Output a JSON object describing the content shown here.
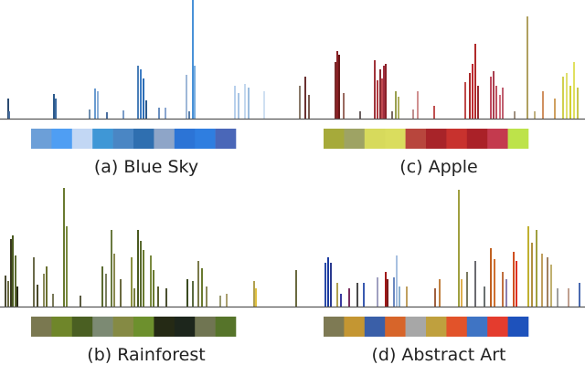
{
  "chart_data": [
    {
      "type": "bar",
      "title": "(a) Blue Sky",
      "ylim": [
        0,
        130
      ],
      "palette": [
        "#6c9fd8",
        "#4f9ef3",
        "#c2d7f4",
        "#3f97d6",
        "#4a86c4",
        "#2f6fb0",
        "#8ea5c8",
        "#2c74d6",
        "#2f7ee0",
        "#4a67b8"
      ],
      "bars": [
        {
          "x": 8,
          "y": 22,
          "c": "#2a4a70"
        },
        {
          "x": 9,
          "y": 8,
          "c": "#4a6fa0"
        },
        {
          "x": 58,
          "y": 27,
          "c": "#2d5a8c"
        },
        {
          "x": 60,
          "y": 22,
          "c": "#3a6aa0"
        },
        {
          "x": 97,
          "y": 10,
          "c": "#6f8fb0"
        },
        {
          "x": 103,
          "y": 33,
          "c": "#6a9bd0"
        },
        {
          "x": 106,
          "y": 30,
          "c": "#8eb0d8"
        },
        {
          "x": 116,
          "y": 7,
          "c": "#4a6fa0"
        },
        {
          "x": 134,
          "y": 9,
          "c": "#7a9cc8"
        },
        {
          "x": 150,
          "y": 58,
          "c": "#4a7fb8"
        },
        {
          "x": 153,
          "y": 54,
          "c": "#3e7dc4"
        },
        {
          "x": 156,
          "y": 44,
          "c": "#2d6db5"
        },
        {
          "x": 159,
          "y": 20,
          "c": "#2a5a90"
        },
        {
          "x": 173,
          "y": 12,
          "c": "#6a8fc0"
        },
        {
          "x": 180,
          "y": 12,
          "c": "#8aa6d0"
        },
        {
          "x": 203,
          "y": 48,
          "c": "#9fb8d8"
        },
        {
          "x": 206,
          "y": 8,
          "c": "#5a7ea8"
        },
        {
          "x": 210,
          "y": 130,
          "c": "#4a92d8"
        },
        {
          "x": 212,
          "y": 58,
          "c": "#7aaee0"
        },
        {
          "x": 256,
          "y": 36,
          "c": "#b8d0ec"
        },
        {
          "x": 260,
          "y": 28,
          "c": "#a8c4e4"
        },
        {
          "x": 267,
          "y": 38,
          "c": "#c4d8ee"
        },
        {
          "x": 271,
          "y": 34,
          "c": "#9ebede"
        },
        {
          "x": 288,
          "y": 30,
          "c": "#d0e0f2"
        }
      ]
    },
    {
      "type": "bar",
      "title": "(c) Apple",
      "ylim": [
        0,
        130
      ],
      "palette": [
        "#a6aa3a",
        "#9ea364",
        "#d7da5c",
        "#dadd5e",
        "#b8463d",
        "#a82429",
        "#c8322e",
        "#aa2128",
        "#c43a4e",
        "#bde34a"
      ],
      "bars": [
        {
          "x": 7,
          "y": 36,
          "c": "#8a7a6a"
        },
        {
          "x": 13,
          "y": 46,
          "c": "#6a3030"
        },
        {
          "x": 17,
          "y": 26,
          "c": "#7a5a50"
        },
        {
          "x": 46,
          "y": 62,
          "c": "#7a2a2a"
        },
        {
          "x": 48,
          "y": 74,
          "c": "#8a2024"
        },
        {
          "x": 50,
          "y": 70,
          "c": "#6a1818"
        },
        {
          "x": 55,
          "y": 28,
          "c": "#9a6a60"
        },
        {
          "x": 73,
          "y": 8,
          "c": "#6a6060"
        },
        {
          "x": 89,
          "y": 64,
          "c": "#a0343a"
        },
        {
          "x": 92,
          "y": 42,
          "c": "#b03a40"
        },
        {
          "x": 95,
          "y": 54,
          "c": "#8a2a30"
        },
        {
          "x": 97,
          "y": 44,
          "c": "#c04a50"
        },
        {
          "x": 99,
          "y": 58,
          "c": "#a03040"
        },
        {
          "x": 101,
          "y": 60,
          "c": "#8a2028"
        },
        {
          "x": 108,
          "y": 8,
          "c": "#7a6a60"
        },
        {
          "x": 112,
          "y": 30,
          "c": "#9aa050"
        },
        {
          "x": 115,
          "y": 24,
          "c": "#b0b060"
        },
        {
          "x": 131,
          "y": 10,
          "c": "#c09090"
        },
        {
          "x": 136,
          "y": 30,
          "c": "#d09090"
        },
        {
          "x": 154,
          "y": 14,
          "c": "#c05050"
        },
        {
          "x": 188,
          "y": 40,
          "c": "#c04a4a"
        },
        {
          "x": 193,
          "y": 50,
          "c": "#a82a2a"
        },
        {
          "x": 196,
          "y": 60,
          "c": "#c02a30"
        },
        {
          "x": 199,
          "y": 82,
          "c": "#b02a2a"
        },
        {
          "x": 202,
          "y": 36,
          "c": "#9a2a30"
        },
        {
          "x": 216,
          "y": 46,
          "c": "#c04a60"
        },
        {
          "x": 219,
          "y": 52,
          "c": "#a84050"
        },
        {
          "x": 222,
          "y": 36,
          "c": "#c05060"
        },
        {
          "x": 226,
          "y": 26,
          "c": "#d07080"
        },
        {
          "x": 229,
          "y": 34,
          "c": "#c06070"
        },
        {
          "x": 242,
          "y": 8,
          "c": "#a09080"
        },
        {
          "x": 256,
          "y": 112,
          "c": "#b0a060"
        },
        {
          "x": 264,
          "y": 8,
          "c": "#c0b080"
        },
        {
          "x": 273,
          "y": 30,
          "c": "#d09060"
        },
        {
          "x": 286,
          "y": 22,
          "c": "#d0a060"
        },
        {
          "x": 295,
          "y": 46,
          "c": "#d0d050"
        },
        {
          "x": 299,
          "y": 50,
          "c": "#e0e070"
        },
        {
          "x": 303,
          "y": 36,
          "c": "#d0d030"
        },
        {
          "x": 307,
          "y": 62,
          "c": "#e0e060"
        },
        {
          "x": 311,
          "y": 34,
          "c": "#c8c850"
        }
      ]
    },
    {
      "type": "bar",
      "title": "(b) Rainforest",
      "ylim": [
        0,
        130
      ],
      "palette": [
        "#7a7850",
        "#6f862a",
        "#4a5f22",
        "#7c8a73",
        "#858a44",
        "#6d902d",
        "#252a15",
        "#1d261c",
        "#707552",
        "#56742a"
      ],
      "bars": [
        {
          "x": 5,
          "y": 34,
          "c": "#4a4a30"
        },
        {
          "x": 8,
          "y": 28,
          "c": "#6a6a40"
        },
        {
          "x": 11,
          "y": 74,
          "c": "#3a3a20"
        },
        {
          "x": 13,
          "y": 78,
          "c": "#4a5a20"
        },
        {
          "x": 16,
          "y": 56,
          "c": "#5a6a30"
        },
        {
          "x": 18,
          "y": 22,
          "c": "#2a2a18"
        },
        {
          "x": 36,
          "y": 54,
          "c": "#6a6a4a"
        },
        {
          "x": 40,
          "y": 24,
          "c": "#4a4a2a"
        },
        {
          "x": 47,
          "y": 36,
          "c": "#8a8a5a"
        },
        {
          "x": 50,
          "y": 44,
          "c": "#6a7030"
        },
        {
          "x": 57,
          "y": 14,
          "c": "#7a7a5a"
        },
        {
          "x": 69,
          "y": 130,
          "c": "#6a7a30"
        },
        {
          "x": 72,
          "y": 88,
          "c": "#7a8a40"
        },
        {
          "x": 87,
          "y": 12,
          "c": "#5a5a40"
        },
        {
          "x": 111,
          "y": 44,
          "c": "#5a6a30"
        },
        {
          "x": 115,
          "y": 36,
          "c": "#7a8060"
        },
        {
          "x": 121,
          "y": 84,
          "c": "#6a7a40"
        },
        {
          "x": 124,
          "y": 58,
          "c": "#8a8a50"
        },
        {
          "x": 131,
          "y": 30,
          "c": "#6a6a40"
        },
        {
          "x": 143,
          "y": 54,
          "c": "#8a9040"
        },
        {
          "x": 146,
          "y": 20,
          "c": "#7a8040"
        },
        {
          "x": 150,
          "y": 84,
          "c": "#4a5a20"
        },
        {
          "x": 153,
          "y": 72,
          "c": "#5a6a30"
        },
        {
          "x": 156,
          "y": 62,
          "c": "#6a7a30"
        },
        {
          "x": 164,
          "y": 56,
          "c": "#7a8a40"
        },
        {
          "x": 167,
          "y": 40,
          "c": "#6a7a30"
        },
        {
          "x": 172,
          "y": 22,
          "c": "#5a6030"
        },
        {
          "x": 181,
          "y": 20,
          "c": "#4a5030"
        },
        {
          "x": 204,
          "y": 30,
          "c": "#3a4a20"
        },
        {
          "x": 210,
          "y": 28,
          "c": "#5a6a40"
        },
        {
          "x": 216,
          "y": 50,
          "c": "#7a7a4a"
        },
        {
          "x": 220,
          "y": 42,
          "c": "#6a7a30"
        },
        {
          "x": 225,
          "y": 22,
          "c": "#8a8a5a"
        },
        {
          "x": 240,
          "y": 12,
          "c": "#9a9a70"
        },
        {
          "x": 247,
          "y": 14,
          "c": "#aaa070"
        },
        {
          "x": 277,
          "y": 28,
          "c": "#b0a050"
        },
        {
          "x": 279,
          "y": 20,
          "c": "#e0c040"
        }
      ]
    },
    {
      "type": "bar",
      "title": "(d) Abstract Art",
      "ylim": [
        0,
        130
      ],
      "palette": [
        "#7e7a54",
        "#c49632",
        "#3a5fa8",
        "#d7652a",
        "#a7a7a7",
        "#bfa03e",
        "#e2532a",
        "#3f74c4",
        "#e43c2e",
        "#1e52bc"
      ],
      "bars": [
        {
          "x": 3,
          "y": 40,
          "c": "#6a6a40"
        },
        {
          "x": 35,
          "y": 48,
          "c": "#2a4aa8"
        },
        {
          "x": 38,
          "y": 54,
          "c": "#1a3aa0"
        },
        {
          "x": 41,
          "y": 48,
          "c": "#2a3a90"
        },
        {
          "x": 48,
          "y": 26,
          "c": "#b0a050"
        },
        {
          "x": 52,
          "y": 14,
          "c": "#3a3aa0"
        },
        {
          "x": 61,
          "y": 20,
          "c": "#7a3060"
        },
        {
          "x": 70,
          "y": 26,
          "c": "#4a4a4a"
        },
        {
          "x": 77,
          "y": 26,
          "c": "#3a5ab0"
        },
        {
          "x": 92,
          "y": 32,
          "c": "#a0a0c0"
        },
        {
          "x": 101,
          "y": 38,
          "c": "#a01818"
        },
        {
          "x": 103,
          "y": 30,
          "c": "#7a1818"
        },
        {
          "x": 110,
          "y": 32,
          "c": "#6a88c0"
        },
        {
          "x": 113,
          "y": 56,
          "c": "#a8c0e0"
        },
        {
          "x": 116,
          "y": 22,
          "c": "#8ab0d0"
        },
        {
          "x": 124,
          "y": 22,
          "c": "#c0a060"
        },
        {
          "x": 155,
          "y": 20,
          "c": "#a06040"
        },
        {
          "x": 160,
          "y": 30,
          "c": "#c08040"
        },
        {
          "x": 181,
          "y": 128,
          "c": "#a0a040"
        },
        {
          "x": 184,
          "y": 30,
          "c": "#e0b050"
        },
        {
          "x": 190,
          "y": 38,
          "c": "#7a7a60"
        },
        {
          "x": 199,
          "y": 50,
          "c": "#6a6a70"
        },
        {
          "x": 209,
          "y": 22,
          "c": "#6a7070"
        },
        {
          "x": 216,
          "y": 64,
          "c": "#c06020"
        },
        {
          "x": 220,
          "y": 52,
          "c": "#d07030"
        },
        {
          "x": 229,
          "y": 38,
          "c": "#c07040"
        },
        {
          "x": 233,
          "y": 30,
          "c": "#8a80b0"
        },
        {
          "x": 241,
          "y": 60,
          "c": "#d05020"
        },
        {
          "x": 244,
          "y": 50,
          "c": "#e03020"
        },
        {
          "x": 257,
          "y": 88,
          "c": "#c0b030"
        },
        {
          "x": 261,
          "y": 70,
          "c": "#b09040"
        },
        {
          "x": 266,
          "y": 84,
          "c": "#a0a040"
        },
        {
          "x": 272,
          "y": 58,
          "c": "#c0a060"
        },
        {
          "x": 278,
          "y": 54,
          "c": "#a08060"
        },
        {
          "x": 282,
          "y": 46,
          "c": "#c0b070"
        },
        {
          "x": 289,
          "y": 20,
          "c": "#a0a0a0"
        },
        {
          "x": 301,
          "y": 20,
          "c": "#c0a090"
        },
        {
          "x": 313,
          "y": 26,
          "c": "#4a6ab0"
        }
      ]
    }
  ]
}
